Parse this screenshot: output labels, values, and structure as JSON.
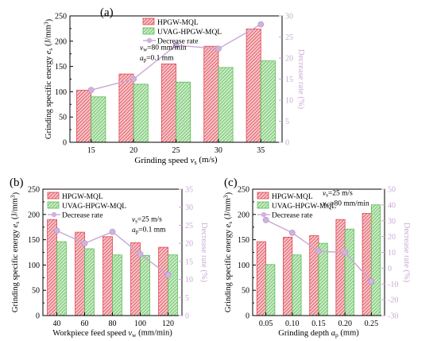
{
  "colors": {
    "bar1": "#e3434f",
    "bar2": "#5bbd55",
    "line": "#c9a8d4",
    "marker": "#cfb3dd",
    "axis": "#000000"
  },
  "chart_data": [
    {
      "type": "bar",
      "panel_label": "(a)",
      "categories": [
        "15",
        "20",
        "25",
        "30",
        "35"
      ],
      "x_label_parts": [
        "Grinding speed ",
        "v",
        "s",
        " (m/s)"
      ],
      "y_label_parts": [
        "Grinding specific energy ",
        "e",
        "s",
        " (J/mm",
        "3",
        ")"
      ],
      "y2_label": "Decrease rate (%)",
      "ylim": [
        0,
        250
      ],
      "yticks": [
        0,
        50,
        100,
        150,
        200,
        250
      ],
      "y2lim": [
        0,
        30
      ],
      "y2ticks": [
        0,
        5,
        10,
        15,
        20,
        25,
        30
      ],
      "series": [
        {
          "name": "HPGW-MQL",
          "kind": "bar",
          "values": [
            103,
            135,
            155,
            190,
            224
          ]
        },
        {
          "name": "UVAG-HPGW-MQL",
          "kind": "bar",
          "values": [
            90,
            115,
            119,
            148,
            161
          ]
        },
        {
          "name": "Decrease rate",
          "kind": "line",
          "axis": "right",
          "values": [
            12.4,
            15.0,
            23.0,
            22.2,
            28.0
          ]
        }
      ],
      "annotations": [
        {
          "parts": [
            "v",
            "w",
            "=80 mm/min"
          ]
        },
        {
          "parts": [
            "a",
            "p",
            "=0.1 mm"
          ]
        }
      ]
    },
    {
      "type": "bar",
      "panel_label": "(b)",
      "categories": [
        "40",
        "60",
        "80",
        "100",
        "120"
      ],
      "x_label_parts": [
        "Workpiece feed speed ",
        "v",
        "w",
        " (mm/min)"
      ],
      "y_label_parts": [
        "Grinding specific energy ",
        "e",
        "s",
        " (J/mm",
        "3",
        ")"
      ],
      "y2_label": "Decrease rate (%)",
      "ylim": [
        0,
        250
      ],
      "yticks": [
        0,
        50,
        100,
        150,
        200,
        250
      ],
      "y2lim": [
        0,
        35
      ],
      "y2ticks": [
        0,
        5,
        10,
        15,
        20,
        25,
        30,
        35
      ],
      "series": [
        {
          "name": "HPGW-MQL",
          "kind": "bar",
          "values": [
            190,
            165,
            156,
            144,
            135
          ]
        },
        {
          "name": "UVAG-HPGW-MQL",
          "kind": "bar",
          "values": [
            146,
            132,
            120,
            119,
            120
          ]
        },
        {
          "name": "Decrease rate",
          "kind": "line",
          "axis": "right",
          "values": [
            23.5,
            20.0,
            23.2,
            17.0,
            11.3
          ]
        }
      ],
      "annotations": [
        {
          "parts": [
            "v",
            "s",
            "=25 m/s"
          ]
        },
        {
          "parts": [
            "a",
            "p",
            "=0.1 mm"
          ]
        }
      ]
    },
    {
      "type": "bar",
      "panel_label": "(c)",
      "categories": [
        "0.05",
        "0.10",
        "0.15",
        "0.20",
        "0.25"
      ],
      "x_label_parts": [
        "Grinding depth ",
        "a",
        "p",
        " (mm)"
      ],
      "y_label_parts": [
        "Grinding specific energy ",
        "e",
        "s",
        " (J/mm",
        "3",
        ")"
      ],
      "y2_label": "Decrease rate (%)",
      "ylim": [
        0,
        250
      ],
      "yticks": [
        0,
        50,
        100,
        150,
        200,
        250
      ],
      "y2lim": [
        -30,
        50
      ],
      "y2ticks": [
        -30,
        -20,
        -10,
        0,
        10,
        20,
        30,
        40,
        50
      ],
      "series": [
        {
          "name": "HPGW-MQL",
          "kind": "bar",
          "values": [
            146,
            155,
            158,
            190,
            202
          ]
        },
        {
          "name": "UVAG-HPGW-MQL",
          "kind": "bar",
          "values": [
            101,
            120,
            143,
            171,
            219
          ]
        },
        {
          "name": "Decrease rate",
          "kind": "line",
          "axis": "right",
          "values": [
            30.5,
            22.4,
            10.6,
            10.0,
            -8.4
          ]
        }
      ],
      "annotations": [
        {
          "parts": [
            "v",
            "s",
            "=25 m/s"
          ]
        },
        {
          "parts": [
            "v",
            "w",
            "=80 mm/min"
          ]
        }
      ]
    }
  ]
}
